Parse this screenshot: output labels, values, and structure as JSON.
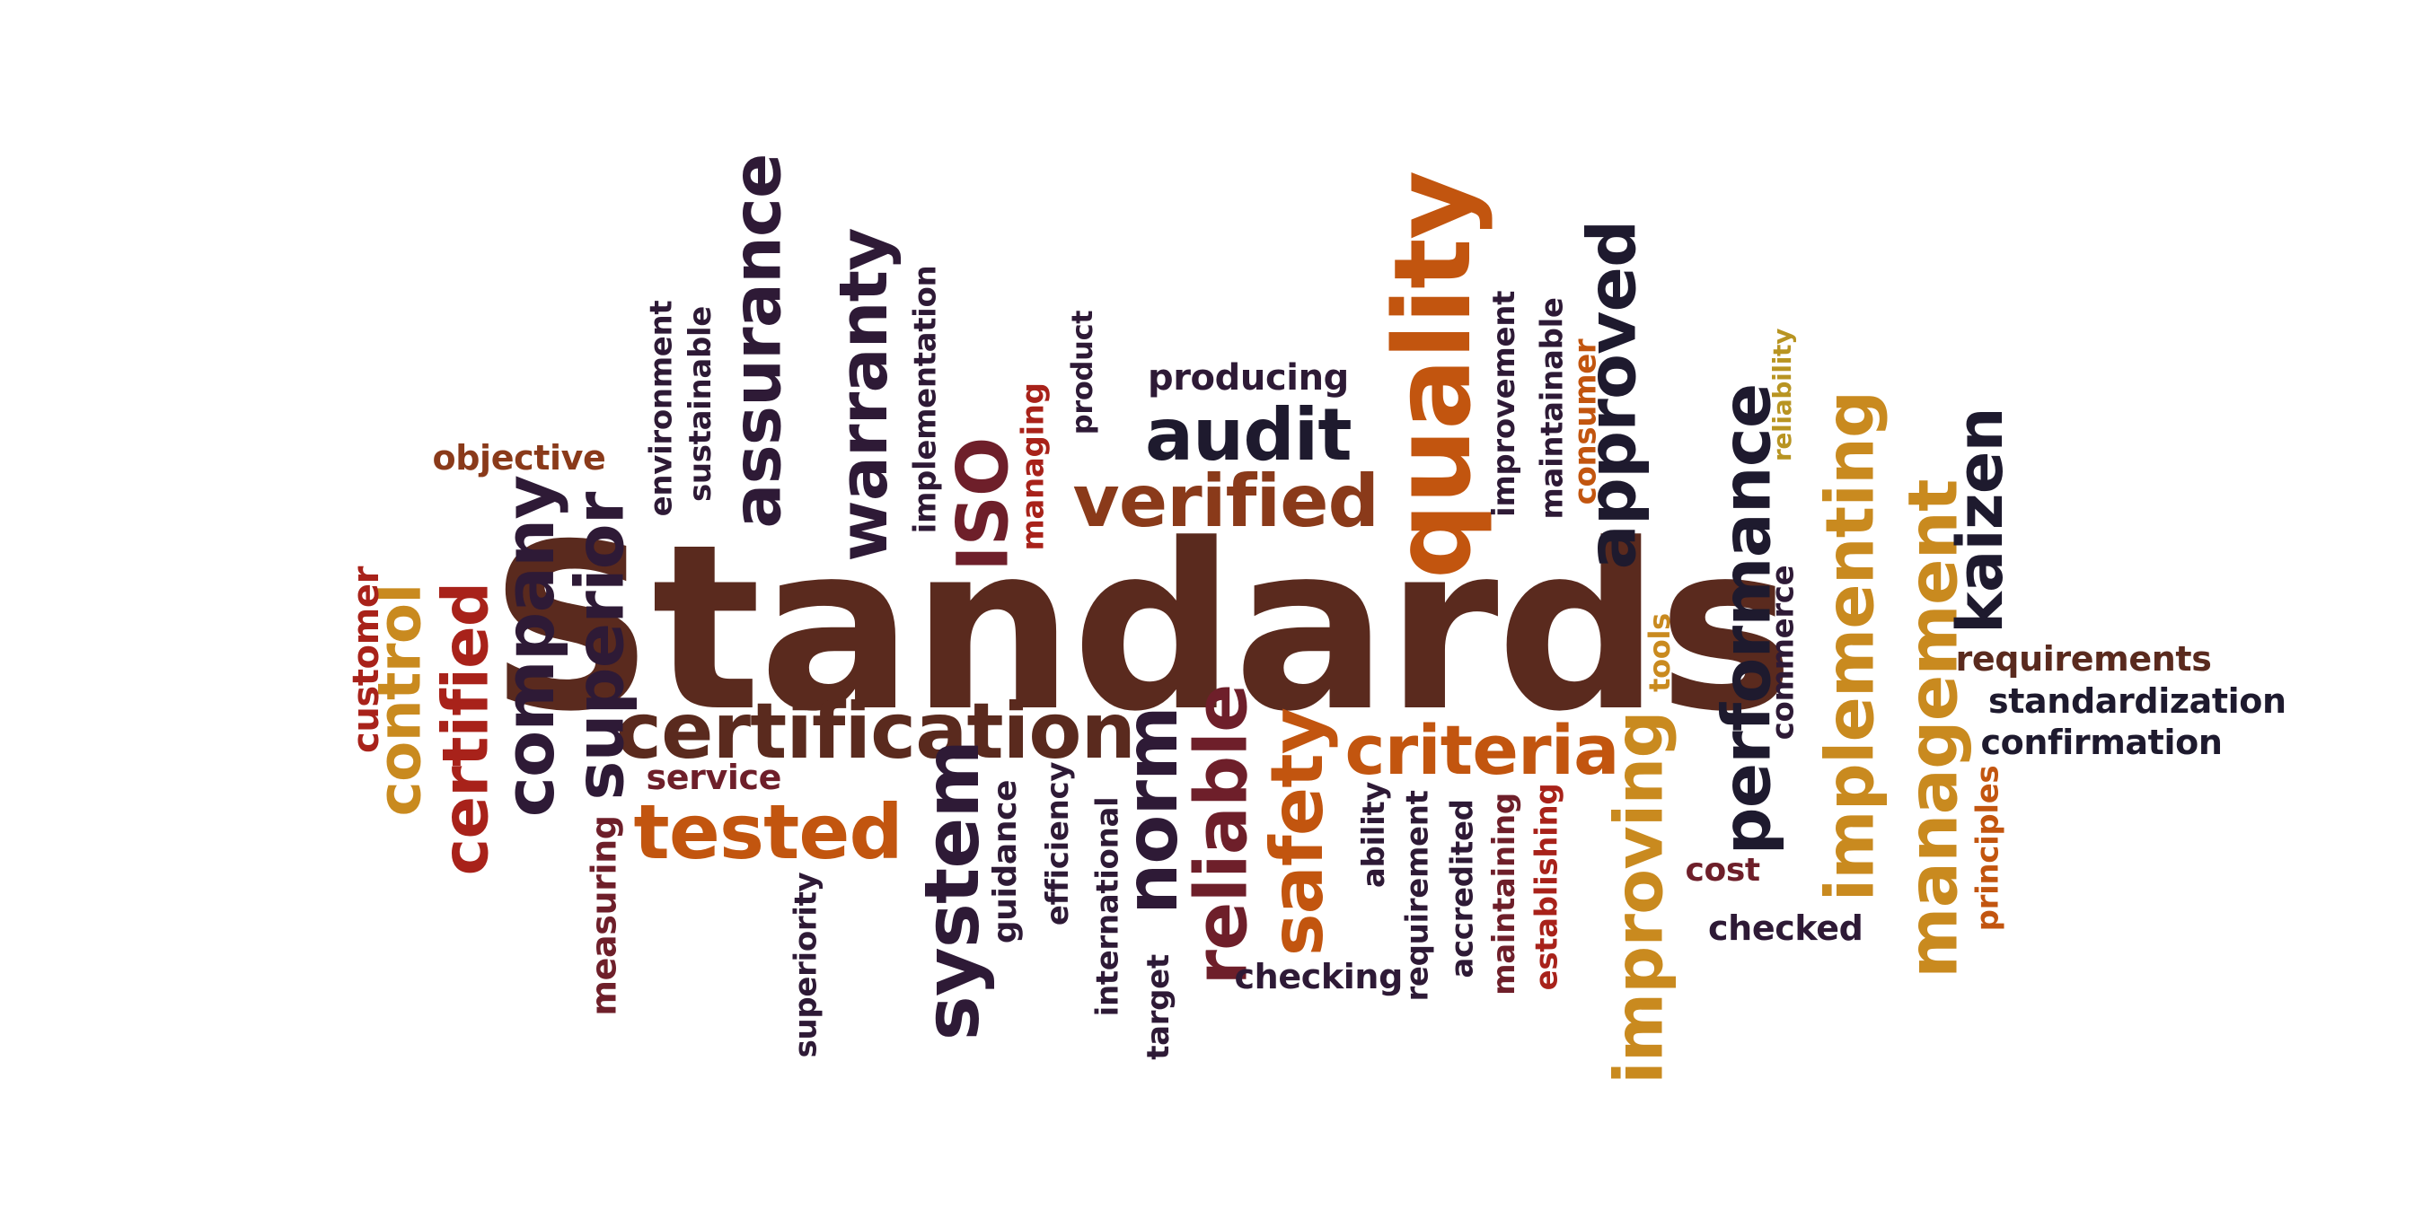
{
  "palette": {
    "dark_brown": "#5a2a1e",
    "deep_purple": "#2e1a36",
    "dark_navy": "#1e1a2e",
    "crimson": "#a8221a",
    "burnt_orange": "#c2550f",
    "amber": "#c98a1f",
    "mustard": "#b89422",
    "maroon": "#6e1f2a",
    "rust": "#8a3a1a"
  },
  "words": [
    {
      "name": "word-standards",
      "text": "Standards",
      "color": "dark_brown",
      "vertical": false
    },
    {
      "name": "word-quality",
      "text": "quality",
      "color": "burnt_orange",
      "vertical": true
    },
    {
      "name": "word-certification",
      "text": "certification",
      "color": "dark_brown",
      "vertical": false
    },
    {
      "name": "word-tested",
      "text": "tested",
      "color": "burnt_orange",
      "vertical": false
    },
    {
      "name": "word-verified",
      "text": "verified",
      "color": "rust",
      "vertical": false
    },
    {
      "name": "word-audit",
      "text": "audit",
      "color": "dark_navy",
      "vertical": false
    },
    {
      "name": "word-producing",
      "text": "producing",
      "color": "deep_purple",
      "vertical": false
    },
    {
      "name": "word-criteria",
      "text": "criteria",
      "color": "burnt_orange",
      "vertical": false
    },
    {
      "name": "word-assurance",
      "text": "assurance",
      "color": "deep_purple",
      "vertical": true
    },
    {
      "name": "word-warranty",
      "text": "warranty",
      "color": "deep_purple",
      "vertical": true
    },
    {
      "name": "word-iso",
      "text": "ISO",
      "color": "maroon",
      "vertical": true
    },
    {
      "name": "word-approved",
      "text": "approved",
      "color": "dark_navy",
      "vertical": true
    },
    {
      "name": "word-performance",
      "text": "performance",
      "color": "dark_navy",
      "vertical": true
    },
    {
      "name": "word-implementing",
      "text": "implementing",
      "color": "amber",
      "vertical": true
    },
    {
      "name": "word-management",
      "text": "management",
      "color": "amber",
      "vertical": true
    },
    {
      "name": "word-kaizen",
      "text": "kaizen",
      "color": "dark_navy",
      "vertical": true
    },
    {
      "name": "word-improving",
      "text": "improving",
      "color": "amber",
      "vertical": true
    },
    {
      "name": "word-system",
      "text": "system",
      "color": "deep_purple",
      "vertical": true
    },
    {
      "name": "word-norm",
      "text": "norm",
      "color": "deep_purple",
      "vertical": true
    },
    {
      "name": "word-reliable",
      "text": "reliable",
      "color": "maroon",
      "vertical": true
    },
    {
      "name": "word-safety",
      "text": "safety",
      "color": "burnt_orange",
      "vertical": true
    },
    {
      "name": "word-company",
      "text": "company",
      "color": "deep_purple",
      "vertical": true
    },
    {
      "name": "word-superior",
      "text": "superior",
      "color": "deep_purple",
      "vertical": true
    },
    {
      "name": "word-certified",
      "text": "certified",
      "color": "crimson",
      "vertical": true
    },
    {
      "name": "word-control",
      "text": "control",
      "color": "amber",
      "vertical": true
    },
    {
      "name": "word-customer",
      "text": "customer",
      "color": "crimson",
      "vertical": true
    },
    {
      "name": "word-objective",
      "text": "objective",
      "color": "rust",
      "vertical": false
    },
    {
      "name": "word-environment",
      "text": "environment",
      "color": "deep_purple",
      "vertical": true
    },
    {
      "name": "word-sustainable",
      "text": "sustainable",
      "color": "deep_purple",
      "vertical": true
    },
    {
      "name": "word-implementation",
      "text": "implementation",
      "color": "deep_purple",
      "vertical": true
    },
    {
      "name": "word-managing",
      "text": "managing",
      "color": "crimson",
      "vertical": true
    },
    {
      "name": "word-product",
      "text": "product",
      "color": "deep_purple",
      "vertical": true
    },
    {
      "name": "word-improvement",
      "text": "improvement",
      "color": "deep_purple",
      "vertical": true
    },
    {
      "name": "word-maintainable",
      "text": "maintainable",
      "color": "deep_purple",
      "vertical": true
    },
    {
      "name": "word-consumer",
      "text": "consumer",
      "color": "burnt_orange",
      "vertical": true
    },
    {
      "name": "word-reliability",
      "text": "reliability",
      "color": "mustard",
      "vertical": true
    },
    {
      "name": "word-tools",
      "text": "tools",
      "color": "amber",
      "vertical": true
    },
    {
      "name": "word-commerce",
      "text": "commerce",
      "color": "deep_purple",
      "vertical": true
    },
    {
      "name": "word-requirements",
      "text": "requirements",
      "color": "dark_brown",
      "vertical": false
    },
    {
      "name": "word-standardization",
      "text": "standardization",
      "color": "dark_navy",
      "vertical": false
    },
    {
      "name": "word-confirmation",
      "text": "confirmation",
      "color": "dark_navy",
      "vertical": false
    },
    {
      "name": "word-principles",
      "text": "principles",
      "color": "burnt_orange",
      "vertical": true
    },
    {
      "name": "word-cost",
      "text": "cost",
      "color": "maroon",
      "vertical": false
    },
    {
      "name": "word-checked",
      "text": "checked",
      "color": "deep_purple",
      "vertical": false
    },
    {
      "name": "word-service",
      "text": "service",
      "color": "maroon",
      "vertical": false
    },
    {
      "name": "word-measuring",
      "text": "measuring",
      "color": "maroon",
      "vertical": true
    },
    {
      "name": "word-superiority",
      "text": "superiority",
      "color": "deep_purple",
      "vertical": true
    },
    {
      "name": "word-guidance",
      "text": "guidance",
      "color": "deep_purple",
      "vertical": true
    },
    {
      "name": "word-efficiency",
      "text": "efficiency",
      "color": "deep_purple",
      "vertical": true
    },
    {
      "name": "word-international",
      "text": "international",
      "color": "deep_purple",
      "vertical": true
    },
    {
      "name": "word-target",
      "text": "target",
      "color": "deep_purple",
      "vertical": true
    },
    {
      "name": "word-checking",
      "text": "checking",
      "color": "deep_purple",
      "vertical": false
    },
    {
      "name": "word-ability",
      "text": "ability",
      "color": "deep_purple",
      "vertical": true
    },
    {
      "name": "word-requirement",
      "text": "requirement",
      "color": "deep_purple",
      "vertical": true
    },
    {
      "name": "word-accredited",
      "text": "accredited",
      "color": "deep_purple",
      "vertical": true
    },
    {
      "name": "word-maintaining",
      "text": "maintaining",
      "color": "maroon",
      "vertical": true
    },
    {
      "name": "word-establishing",
      "text": "establishing",
      "color": "crimson",
      "vertical": true
    }
  ]
}
